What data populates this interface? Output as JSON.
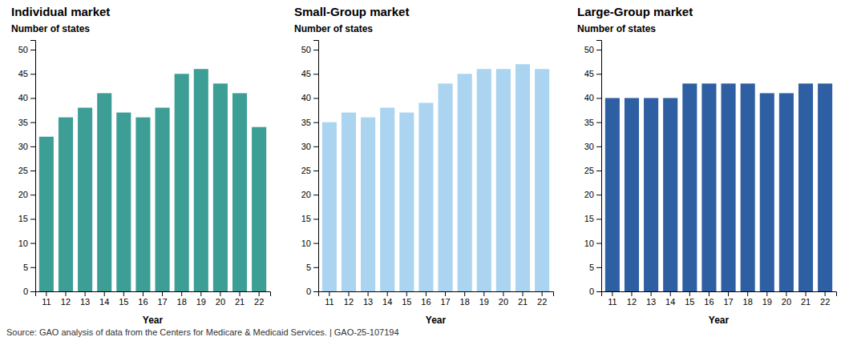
{
  "chart_data": [
    {
      "type": "bar",
      "title": "Individual market",
      "ylabel": "Number of states",
      "xlabel": "Year",
      "color": "#3d9e96",
      "categories": [
        "11",
        "12",
        "13",
        "14",
        "15",
        "16",
        "17",
        "18",
        "19",
        "20",
        "21",
        "22"
      ],
      "values": [
        32,
        36,
        38,
        41,
        37,
        36,
        38,
        45,
        46,
        43,
        41,
        34
      ],
      "ylim": [
        0,
        52
      ],
      "yticks": [
        0,
        5,
        10,
        15,
        20,
        25,
        30,
        35,
        40,
        45,
        50
      ],
      "grid": false
    },
    {
      "type": "bar",
      "title": "Small-Group market",
      "ylabel": "Number of states",
      "xlabel": "Year",
      "color": "#aad4f0",
      "categories": [
        "11",
        "12",
        "13",
        "14",
        "15",
        "16",
        "17",
        "18",
        "19",
        "20",
        "21",
        "22"
      ],
      "values": [
        35,
        37,
        36,
        38,
        37,
        39,
        43,
        45,
        46,
        46,
        47,
        46
      ],
      "ylim": [
        0,
        52
      ],
      "yticks": [
        0,
        5,
        10,
        15,
        20,
        25,
        30,
        35,
        40,
        45,
        50
      ],
      "grid": false
    },
    {
      "type": "bar",
      "title": "Large-Group market",
      "ylabel": "Number of states",
      "xlabel": "Year",
      "color": "#2e5fa3",
      "categories": [
        "11",
        "12",
        "13",
        "14",
        "15",
        "16",
        "17",
        "18",
        "19",
        "20",
        "21",
        "22"
      ],
      "values": [
        40,
        40,
        40,
        40,
        43,
        43,
        43,
        43,
        41,
        41,
        43,
        43
      ],
      "ylim": [
        0,
        52
      ],
      "yticks": [
        0,
        5,
        10,
        15,
        20,
        25,
        30,
        35,
        40,
        45,
        50
      ],
      "grid": false
    }
  ],
  "annotation": "Source: GAO analysis of data from the Centers for Medicare & Medicaid Services.  |  GAO-25-107194"
}
